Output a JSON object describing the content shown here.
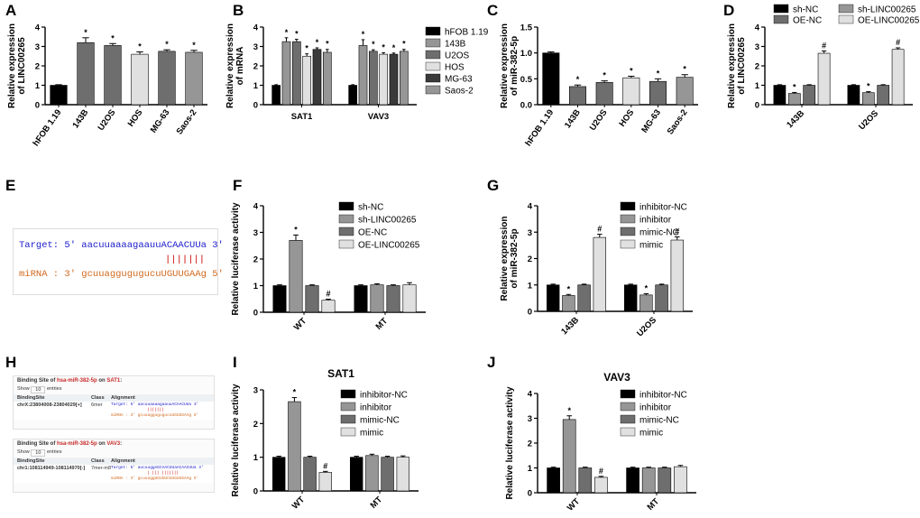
{
  "panel_labels": [
    "A",
    "B",
    "C",
    "D",
    "E",
    "F",
    "G",
    "H",
    "I",
    "J"
  ],
  "colors": {
    "black": "#000000",
    "dark": "#3a3a3a",
    "gray": "#6e6e6e",
    "mid": "#969696",
    "light": "#bdbdbd",
    "pale": "#e0e0e0",
    "seq_target": "#1a1acc",
    "seq_mirna": "#d2691e",
    "accent_red": "#c62828"
  },
  "panel_E": {
    "target_line": "Target: 5' aacuuaaaagaauuACAACUUa 3'",
    "pair_line": "|||||||",
    "mirna_line": "miRNA : 3' gcuuaggugugucuUGUUGAAg 5'"
  },
  "panel_H": {
    "sat1": {
      "title_prefix": "Binding Site of ",
      "mirna": "hsa-miR-382-5p",
      "title_mid": " on ",
      "gene": "SAT1",
      "title_suffix": ":",
      "show": "Show",
      "show_value": "10",
      "entries": "entries",
      "col_site": "BindingSite",
      "col_class": "Class",
      "col_alignment": "Alignment",
      "site": "chrX:23804008-23804029[+]",
      "site_class": "6mer",
      "align_target": "Target: 5' aacuuaaaagaauuACAACUUa 3'",
      "align_pairs": "|||||||",
      "align_mirna": "miRNA : 3' gcuuaggugugucuUGUUGAAg 5'"
    },
    "vav3": {
      "title_prefix": "Binding Site of ",
      "mirna": "hsa-miR-382-5p",
      "title_mid": " on ",
      "gene": "VAV3",
      "title_suffix": ":",
      "show": "Show",
      "show_value": "10",
      "entries": "entries",
      "col_site": "BindingSite",
      "col_class": "Class",
      "col_alignment": "Alignment",
      "site": "chr1:108114949-108114970[-]",
      "site_class": "7mer-m8",
      "align_target": "Target: 5' aucuuggAGCAACUUaACAACUUa 3'",
      "align_pairs": "| |||  |||||||",
      "align_mirna": "miRNA : 3' gcuuaggUGUGUCUUGUUGAAg 5'"
    }
  },
  "chart_data": [
    {
      "panel": "A",
      "type": "bar",
      "title": "",
      "ylabel": "Relative expression of LINC00265",
      "xlabel": "",
      "ylim": [
        0,
        4
      ],
      "yticks": [
        0,
        1,
        2,
        3,
        4
      ],
      "categories": [
        "hFOB 1.19",
        "143B",
        "U2OS",
        "HOS",
        "MG-63",
        "Saos-2"
      ],
      "values": [
        1.0,
        3.2,
        3.05,
        2.6,
        2.75,
        2.7
      ],
      "errors": [
        0.03,
        0.25,
        0.1,
        0.12,
        0.08,
        0.1
      ],
      "sig": [
        "",
        "*",
        "*",
        "*",
        "*",
        "*"
      ],
      "fills": [
        "#000000",
        "#6e6e6e",
        "#6e6e6e",
        "#e0e0e0",
        "#6e6e6e",
        "#969696"
      ]
    },
    {
      "panel": "B",
      "type": "bar",
      "title": "",
      "ylabel": "Relative expression of mRNA",
      "xlabel": "",
      "ylim": [
        0,
        4
      ],
      "yticks": [
        0,
        1,
        2,
        3,
        4
      ],
      "categories": [
        "SAT1",
        "VAV3"
      ],
      "series": [
        {
          "name": "hFOB 1.19",
          "fill": "#000000",
          "values": [
            1.0,
            1.0
          ],
          "errors": [
            0.03,
            0.03
          ],
          "sig": [
            "",
            ""
          ]
        },
        {
          "name": "143B",
          "fill": "#969696",
          "values": [
            3.25,
            3.05
          ],
          "errors": [
            0.2,
            0.3
          ],
          "sig": [
            "*",
            "*"
          ]
        },
        {
          "name": "U2OS",
          "fill": "#6e6e6e",
          "values": [
            3.25,
            2.75
          ],
          "errors": [
            0.12,
            0.08
          ],
          "sig": [
            "*",
            "*"
          ]
        },
        {
          "name": "HOS",
          "fill": "#e0e0e0",
          "values": [
            2.5,
            2.6
          ],
          "errors": [
            0.12,
            0.08
          ],
          "sig": [
            "*",
            "*"
          ]
        },
        {
          "name": "MG-63",
          "fill": "#3a3a3a",
          "values": [
            2.85,
            2.6
          ],
          "errors": [
            0.08,
            0.06
          ],
          "sig": [
            "*",
            "*"
          ]
        },
        {
          "name": "Saos-2",
          "fill": "#969696",
          "values": [
            2.7,
            2.75
          ],
          "errors": [
            0.15,
            0.1
          ],
          "sig": [
            "*",
            "*"
          ]
        }
      ],
      "legend": "right"
    },
    {
      "panel": "C",
      "type": "bar",
      "title": "",
      "ylabel": "Relative expression of miR-382-5p",
      "xlabel": "",
      "ylim": [
        0,
        1.5
      ],
      "yticks": [
        0.0,
        0.5,
        1.0,
        1.5
      ],
      "categories": [
        "hFOB 1.19",
        "143B",
        "U2OS",
        "HOS",
        "MG-63",
        "Saos-2"
      ],
      "values": [
        1.0,
        0.35,
        0.43,
        0.52,
        0.45,
        0.53
      ],
      "errors": [
        0.02,
        0.03,
        0.03,
        0.03,
        0.05,
        0.05
      ],
      "sig": [
        "",
        "*",
        "*",
        "*",
        "*",
        "*"
      ],
      "fills": [
        "#000000",
        "#6e6e6e",
        "#6e6e6e",
        "#e0e0e0",
        "#6e6e6e",
        "#969696"
      ]
    },
    {
      "panel": "D",
      "type": "bar",
      "title": "",
      "ylabel": "Relative expression of LINC00265",
      "xlabel": "",
      "ylim": [
        0,
        4
      ],
      "yticks": [
        0,
        1,
        2,
        3,
        4
      ],
      "categories": [
        "143B",
        "U2OS"
      ],
      "series": [
        {
          "name": "sh-NC",
          "fill": "#000000",
          "values": [
            1.0,
            1.0
          ],
          "errors": [
            0.03,
            0.03
          ],
          "sig": [
            "",
            ""
          ]
        },
        {
          "name": "sh-LINC00265",
          "fill": "#969696",
          "values": [
            0.58,
            0.62
          ],
          "errors": [
            0.05,
            0.05
          ],
          "sig": [
            "*",
            "*"
          ]
        },
        {
          "name": "OE-NC",
          "fill": "#6e6e6e",
          "values": [
            1.0,
            1.0
          ],
          "errors": [
            0.03,
            0.03
          ],
          "sig": [
            "",
            ""
          ]
        },
        {
          "name": "OE-LINC00265",
          "fill": "#e0e0e0",
          "values": [
            2.65,
            2.85
          ],
          "errors": [
            0.12,
            0.08
          ],
          "sig": [
            "#",
            "#"
          ]
        }
      ],
      "legend": "top"
    },
    {
      "panel": "F",
      "type": "bar",
      "title": "",
      "ylabel": "Relative luciferase activity",
      "xlabel": "",
      "ylim": [
        0,
        4
      ],
      "yticks": [
        0,
        1,
        2,
        3,
        4
      ],
      "categories": [
        "WT",
        "MT"
      ],
      "series": [
        {
          "name": "sh-NC",
          "fill": "#000000",
          "values": [
            1.0,
            1.0
          ],
          "errors": [
            0.03,
            0.03
          ],
          "sig": [
            "",
            ""
          ]
        },
        {
          "name": "sh-LINC00265",
          "fill": "#969696",
          "values": [
            2.7,
            1.03
          ],
          "errors": [
            0.2,
            0.04
          ],
          "sig": [
            "*",
            ""
          ]
        },
        {
          "name": "OE-NC",
          "fill": "#6e6e6e",
          "values": [
            1.0,
            1.0
          ],
          "errors": [
            0.03,
            0.03
          ],
          "sig": [
            "",
            ""
          ]
        },
        {
          "name": "OE-LINC00265",
          "fill": "#e0e0e0",
          "values": [
            0.45,
            1.03
          ],
          "errors": [
            0.04,
            0.08
          ],
          "sig": [
            "#",
            ""
          ]
        }
      ],
      "legend": "right"
    },
    {
      "panel": "G",
      "type": "bar",
      "title": "",
      "ylabel": "Relative expression of miR-382-5p",
      "xlabel": "",
      "ylim": [
        0,
        4
      ],
      "yticks": [
        0,
        1,
        2,
        3,
        4
      ],
      "categories": [
        "143B",
        "U2OS"
      ],
      "series": [
        {
          "name": "inhibitor-NC",
          "fill": "#000000",
          "values": [
            1.0,
            1.0
          ],
          "errors": [
            0.03,
            0.03
          ],
          "sig": [
            "",
            ""
          ]
        },
        {
          "name": "inhibitor",
          "fill": "#969696",
          "values": [
            0.6,
            0.62
          ],
          "errors": [
            0.04,
            0.05
          ],
          "sig": [
            "*",
            "*"
          ]
        },
        {
          "name": "mimic-NC",
          "fill": "#6e6e6e",
          "values": [
            1.0,
            1.0
          ],
          "errors": [
            0.03,
            0.03
          ],
          "sig": [
            "",
            ""
          ]
        },
        {
          "name": "mimic",
          "fill": "#e0e0e0",
          "values": [
            2.8,
            2.7
          ],
          "errors": [
            0.12,
            0.12
          ],
          "sig": [
            "#",
            "#"
          ]
        }
      ],
      "legend": "right"
    },
    {
      "panel": "I",
      "type": "bar",
      "title": "SAT1",
      "ylabel": "Relative luciferase activity",
      "xlabel": "",
      "ylim": [
        0,
        3
      ],
      "yticks": [
        0,
        1,
        2,
        3
      ],
      "categories": [
        "WT",
        "MT"
      ],
      "series": [
        {
          "name": "inhibitor-NC",
          "fill": "#000000",
          "values": [
            1.0,
            1.0
          ],
          "errors": [
            0.03,
            0.03
          ],
          "sig": [
            "",
            ""
          ]
        },
        {
          "name": "inhibitor",
          "fill": "#969696",
          "values": [
            2.65,
            1.05
          ],
          "errors": [
            0.12,
            0.04
          ],
          "sig": [
            "*",
            ""
          ]
        },
        {
          "name": "mimic-NC",
          "fill": "#6e6e6e",
          "values": [
            1.0,
            1.0
          ],
          "errors": [
            0.03,
            0.03
          ],
          "sig": [
            "",
            ""
          ]
        },
        {
          "name": "mimic",
          "fill": "#e0e0e0",
          "values": [
            0.55,
            1.0
          ],
          "errors": [
            0.03,
            0.04
          ],
          "sig": [
            "#",
            ""
          ]
        }
      ],
      "legend": "right"
    },
    {
      "panel": "J",
      "type": "bar",
      "title": "VAV3",
      "ylabel": "Relative luciferase activity",
      "xlabel": "",
      "ylim": [
        0,
        4
      ],
      "yticks": [
        0,
        1,
        2,
        3,
        4
      ],
      "categories": [
        "WT",
        "MT"
      ],
      "series": [
        {
          "name": "inhibitor-NC",
          "fill": "#000000",
          "values": [
            1.0,
            1.0
          ],
          "errors": [
            0.03,
            0.03
          ],
          "sig": [
            "",
            ""
          ]
        },
        {
          "name": "inhibitor",
          "fill": "#969696",
          "values": [
            2.95,
            1.0
          ],
          "errors": [
            0.15,
            0.03
          ],
          "sig": [
            "*",
            ""
          ]
        },
        {
          "name": "mimic-NC",
          "fill": "#6e6e6e",
          "values": [
            1.0,
            1.0
          ],
          "errors": [
            0.03,
            0.03
          ],
          "sig": [
            "",
            ""
          ]
        },
        {
          "name": "mimic",
          "fill": "#e0e0e0",
          "values": [
            0.62,
            1.05
          ],
          "errors": [
            0.04,
            0.05
          ],
          "sig": [
            "#",
            ""
          ]
        }
      ],
      "legend": "right"
    }
  ]
}
